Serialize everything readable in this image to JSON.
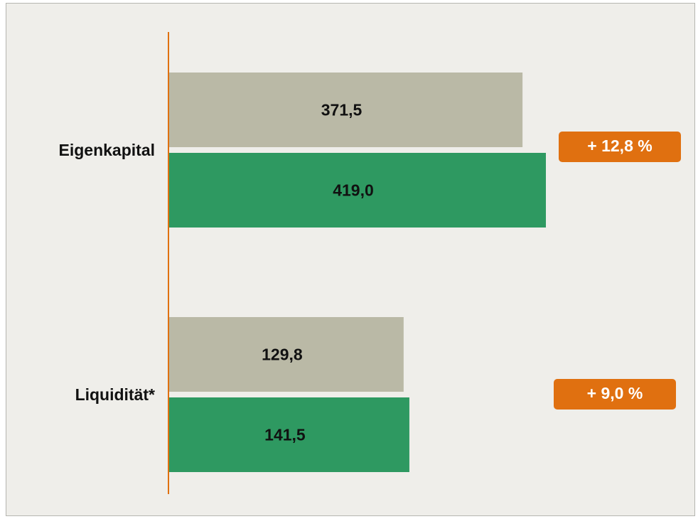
{
  "chart_data": {
    "type": "hbar",
    "categories": [
      "Eigenkapital",
      "Liquidität*"
    ],
    "series": [
      {
        "color": "#bab9a6",
        "values": [
          371.5,
          129.8
        ],
        "value_labels": [
          "371,5",
          "129,8"
        ]
      },
      {
        "color": "#2e9961",
        "values": [
          419.0,
          141.5
        ],
        "value_labels": [
          "419,0",
          "141,5"
        ]
      }
    ],
    "annotations": [
      "+ 12,8 %",
      "+ 9,0 %"
    ],
    "annotation_color": "#e07010",
    "axis_color": "#e07010"
  }
}
